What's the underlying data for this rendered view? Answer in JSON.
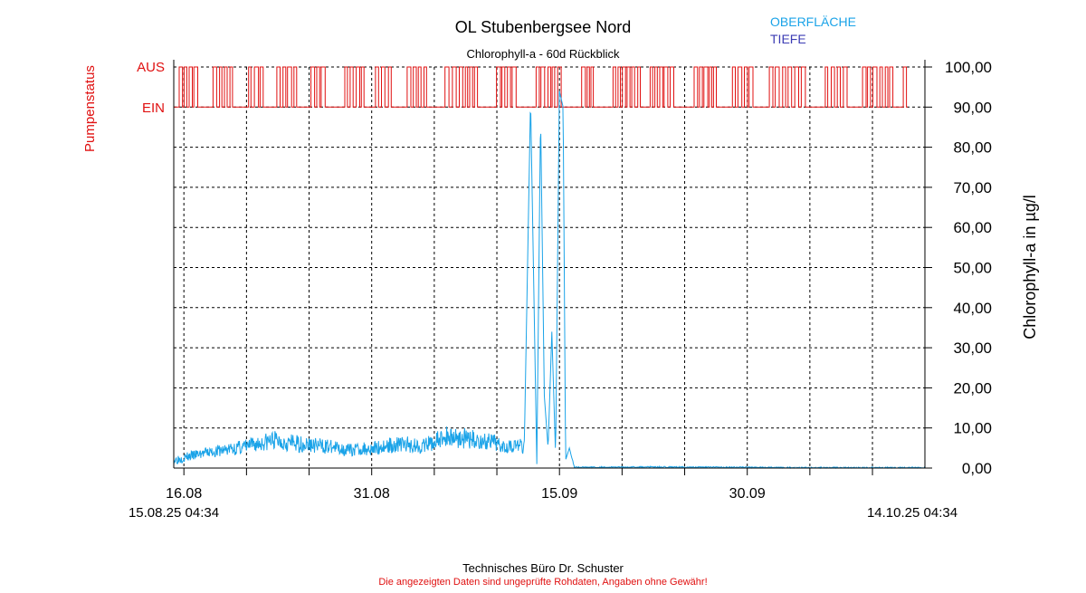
{
  "page": {
    "title": "OL Stubenbergsee Nord",
    "subtitle": "Chlorophyll-a - 60d Rückblick",
    "footer_company": "Technisches Büro Dr. Schuster",
    "footer_disclaimer": "Die angezeigten Daten sind ungeprüfte Rohdaten, Angaben ohne Gewähr!"
  },
  "colors": {
    "surface": "#1aa3e8",
    "depth": "#3c3cb4",
    "pump": "#e01010",
    "axis": "#000000",
    "grid": "#000000",
    "footer_disclaimer": "#e01010"
  },
  "chart_data": {
    "type": "line",
    "title": "OL Stubenbergsee Nord",
    "subtitle": "Chlorophyll-a - 60d Rückblick",
    "ylabel": "Chlorophyll-a in µg/l",
    "ylim": [
      0,
      100
    ],
    "y_ticks": [
      "0,00",
      "10,00",
      "20,00",
      "30,00",
      "40,00",
      "50,00",
      "60,00",
      "70,00",
      "80,00",
      "90,00",
      "100,00"
    ],
    "x_start": "15.08.25 04:34",
    "x_end": "14.10.25 04:34",
    "x_tick_labels": [
      "16.08",
      "31.08",
      "15.09",
      "30.09"
    ],
    "grid": true,
    "legend": [
      {
        "name": "OBERFLÄCHE",
        "color": "#1aa3e8"
      },
      {
        "name": "TIEFE",
        "color": "#3c3cb4"
      }
    ],
    "legend_position": "top-right",
    "pump_axis": {
      "label": "Pumpenstatus",
      "states": [
        "AUS",
        "EIN"
      ]
    },
    "series": [
      {
        "name": "OBERFLÄCHE",
        "x_days": [
          0,
          2,
          4,
          6,
          8,
          10,
          12,
          14,
          16,
          18,
          20,
          22,
          24,
          26,
          28,
          28.5,
          29,
          29.3,
          29.6,
          29.9,
          30.2,
          30.5,
          30.8,
          31.1,
          31.3,
          31.6,
          32,
          34,
          38,
          42,
          46,
          50,
          54,
          58,
          60
        ],
        "values": [
          2,
          3.5,
          4.5,
          5.5,
          7,
          6,
          5.5,
          4.5,
          5,
          6,
          5.5,
          8,
          7,
          6,
          5.5,
          92,
          1,
          88,
          18,
          5,
          34,
          3,
          94,
          90,
          2,
          5,
          0.2,
          0.2,
          0.3,
          0.2,
          0.2,
          0.1,
          0.1,
          0.1,
          0.1
        ]
      },
      {
        "name": "TIEFE",
        "x_days": [],
        "values": []
      }
    ],
    "pump_status": {
      "note": "Pump alternates frequently between EIN and AUS throughout the 60-day period",
      "events": [
        "EIN",
        "AUS"
      ]
    }
  }
}
